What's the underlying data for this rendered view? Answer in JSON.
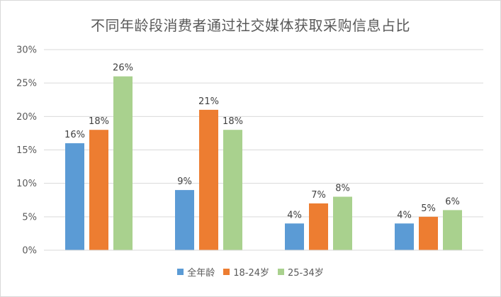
{
  "chart_data": {
    "type": "bar",
    "title": "不同年龄段消费者通过社交媒体获取采购信息占比",
    "xlabel": "",
    "ylabel": "",
    "categories": [
      "",
      "",
      "",
      ""
    ],
    "series": [
      {
        "name": "全年龄",
        "values": [
          16,
          9,
          4,
          4
        ],
        "labels": [
          "16%",
          "9%",
          "4%",
          "4%"
        ]
      },
      {
        "name": "18-24岁",
        "values": [
          18,
          21,
          7,
          5
        ],
        "labels": [
          "18%",
          "21%",
          "7%",
          "5%"
        ]
      },
      {
        "name": "25-34岁",
        "values": [
          26,
          18,
          8,
          6
        ],
        "labels": [
          "26%",
          "18%",
          "8%",
          "6%"
        ]
      }
    ],
    "ylim": [
      0,
      30
    ],
    "yticks": [
      0,
      5,
      10,
      15,
      20,
      25,
      30
    ],
    "ytick_labels": [
      "0%",
      "5%",
      "10%",
      "15%",
      "20%",
      "25%",
      "30%"
    ],
    "grid": true,
    "legend_position": "bottom",
    "colors": [
      "#5b9bd5",
      "#ed7d31",
      "#a9d18e"
    ]
  }
}
